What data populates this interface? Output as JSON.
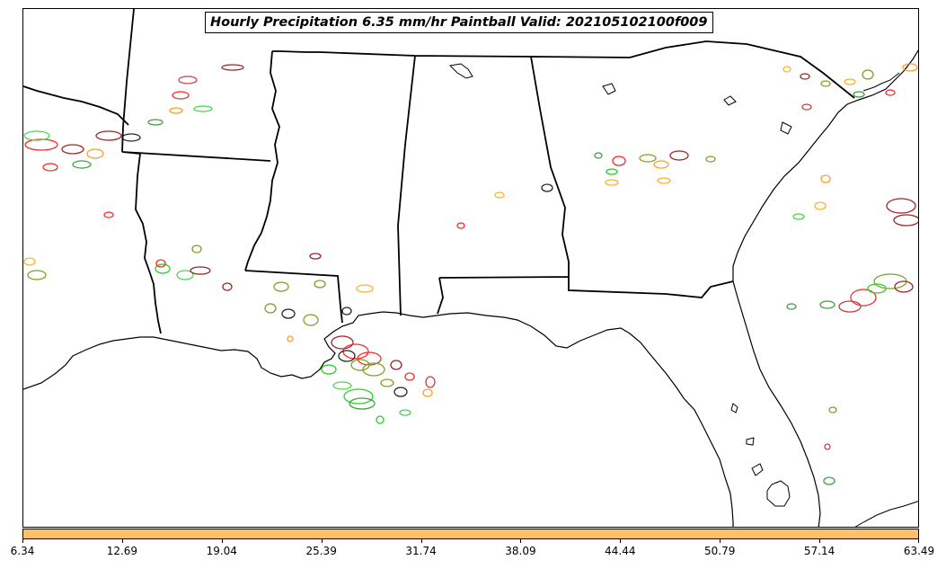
{
  "title": "Hourly Precipitation 6.35 mm/hr Paintball Valid: 202105102100f009",
  "colorbar": {
    "color": "#ffc168",
    "tick_labels": [
      "6.34",
      "12.69",
      "19.04",
      "25.39",
      "31.74",
      "38.09",
      "44.44",
      "50.79",
      "57.14",
      "63.49"
    ]
  },
  "member_colors": [
    "#ff0000",
    "#00c800",
    "#ff8c00",
    "#8b0000",
    "#6b8e00",
    "#000000",
    "#ffa500",
    "#228b22",
    "#32cd32",
    "#b22222"
  ],
  "map": {
    "region": "Southeastern United States",
    "projection": "Lambert Conformal",
    "features": [
      "state-borders",
      "coastline"
    ]
  }
}
